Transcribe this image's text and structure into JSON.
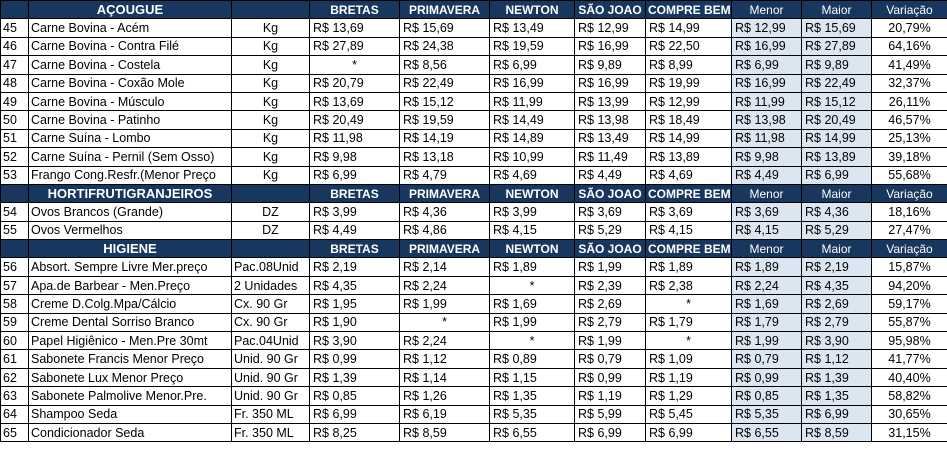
{
  "columns": [
    "BRETAS",
    "PRIMAVERA",
    "NEWTON",
    "SÃO JOAO",
    "COMPRE BEM",
    "Menor",
    "Maior",
    "Variação"
  ],
  "sections": [
    {
      "title": "AÇOUGUE",
      "rows": [
        {
          "n": "45",
          "item": "Carne Bovina - Acém",
          "unit": "Kg",
          "vals": [
            "R$ 13,69",
            "R$ 15,69",
            "R$ 13,49",
            "R$ 12,99",
            "R$ 14,99"
          ],
          "min": "R$ 12,99",
          "max": "R$ 15,69",
          "var": "20,79%"
        },
        {
          "n": "46",
          "item": "Carne Bovina - Contra Filé",
          "unit": "Kg",
          "vals": [
            "R$ 27,89",
            "R$ 24,38",
            "R$ 19,59",
            "R$ 16,99",
            "R$ 22,50"
          ],
          "min": "R$ 16,99",
          "max": "R$ 27,89",
          "var": "64,16%"
        },
        {
          "n": "47",
          "item": "Carne Bovina - Costela",
          "unit": "Kg",
          "vals": [
            "*",
            "R$ 8,56",
            "R$ 6,99",
            "R$ 9,89",
            "R$ 8,99"
          ],
          "min": "R$ 6,99",
          "max": "R$ 9,89",
          "var": "41,49%"
        },
        {
          "n": "48",
          "item": "Carne Bovina - Coxão Mole",
          "unit": "Kg",
          "vals": [
            "R$ 20,79",
            "R$ 22,49",
            "R$ 16,99",
            "R$ 16,99",
            "R$ 19,99"
          ],
          "min": "R$ 16,99",
          "max": "R$ 22,49",
          "var": "32,37%"
        },
        {
          "n": "49",
          "item": "Carne Bovina - Músculo",
          "unit": "Kg",
          "vals": [
            "R$ 13,69",
            "R$ 15,12",
            "R$ 11,99",
            "R$ 13,99",
            "R$ 12,99"
          ],
          "min": "R$ 11,99",
          "max": "R$ 15,12",
          "var": "26,11%"
        },
        {
          "n": "50",
          "item": "Carne Bovina - Patinho",
          "unit": "Kg",
          "vals": [
            "R$ 20,49",
            "R$ 19,59",
            "R$ 14,49",
            "R$ 13,98",
            "R$ 18,49"
          ],
          "min": "R$ 13,98",
          "max": "R$ 20,49",
          "var": "46,57%"
        },
        {
          "n": "51",
          "item": "Carne Suína - Lombo",
          "unit": "Kg",
          "vals": [
            "R$ 11,98",
            "R$ 14,19",
            "R$ 14,89",
            "R$ 13,49",
            "R$ 14,99"
          ],
          "min": "R$ 11,98",
          "max": "R$ 14,99",
          "var": "25,13%"
        },
        {
          "n": "52",
          "item": "Carne Suína - Pernil (Sem Osso)",
          "unit": "Kg",
          "vals": [
            "R$ 9,98",
            "R$ 13,18",
            "R$ 10,99",
            "R$ 11,49",
            "R$ 13,89"
          ],
          "min": "R$ 9,98",
          "max": "R$ 13,89",
          "var": "39,18%"
        },
        {
          "n": "53",
          "item": "Frango Cong.Resfr.(Menor Preço",
          "unit": "Kg",
          "vals": [
            "R$ 6,99",
            "R$ 4,79",
            "R$ 4,69",
            "R$ 4,49",
            "R$ 4,69"
          ],
          "min": "R$ 4,49",
          "max": "R$ 6,99",
          "var": "55,68%"
        }
      ]
    },
    {
      "title": "HORTIFRUTIGRANJEIROS",
      "rows": [
        {
          "n": "54",
          "item": "Ovos Brancos (Grande)",
          "unit": "DZ",
          "vals": [
            "R$ 3,99",
            "R$ 4,36",
            "R$ 3,99",
            "R$ 3,69",
            "R$ 3,69"
          ],
          "min": "R$ 3,69",
          "max": "R$ 4,36",
          "var": "18,16%"
        },
        {
          "n": "55",
          "item": "Ovos Vermelhos",
          "unit": "DZ",
          "vals": [
            "R$ 4,49",
            "R$ 4,86",
            "R$ 4,15",
            "R$ 5,29",
            "R$ 4,15"
          ],
          "min": "R$ 4,15",
          "max": "R$ 5,29",
          "var": "27,47%"
        }
      ]
    },
    {
      "title": "HIGIENE",
      "rows": [
        {
          "n": "56",
          "item": "Absort. Sempre Livre Mer.preço",
          "unit": "Pac.08Unid",
          "vals": [
            "R$ 2,19",
            "R$ 2,14",
            "R$ 1,89",
            "R$ 1,99",
            "R$ 1,89"
          ],
          "min": "R$ 1,89",
          "max": "R$ 2,19",
          "var": "15,87%"
        },
        {
          "n": "57",
          "item": "Apa.de Barbear - Men.Preço",
          "unit": "2 Unidades",
          "vals": [
            "R$ 4,35",
            "R$ 2,24",
            "*",
            "R$ 2,39",
            "R$ 2,38"
          ],
          "min": "R$ 2,24",
          "max": "R$ 4,35",
          "var": "94,20%"
        },
        {
          "n": "58",
          "item": "Creme D.Colg.Mpa/Cálcio",
          "unit": "Cx. 90 Gr",
          "vals": [
            "R$ 1,95",
            "R$ 1,99",
            "R$ 1,69",
            "R$ 2,69",
            "*"
          ],
          "min": "R$ 1,69",
          "max": "R$ 2,69",
          "var": "59,17%"
        },
        {
          "n": "59",
          "item": "Creme Dental Sorriso Branco",
          "unit": "Cx. 90 Gr",
          "vals": [
            "R$ 1,90",
            "*",
            "R$ 1,99",
            "R$ 2,79",
            "R$ 1,79"
          ],
          "min": "R$ 1,79",
          "max": "R$ 2,79",
          "var": "55,87%"
        },
        {
          "n": "60",
          "item": "Papel Higiênico - Men.Pre 30mt",
          "unit": "Pac.04Unid",
          "vals": [
            "R$ 3,90",
            "R$ 2,24",
            "*",
            "R$ 1,99",
            "*"
          ],
          "min": "R$ 1,99",
          "max": "R$ 3,90",
          "var": "95,98%"
        },
        {
          "n": "61",
          "item": "Sabonete Francis Menor Preço",
          "unit": "Unid. 90 Gr",
          "vals": [
            "R$ 0,99",
            "R$ 1,12",
            "R$ 0,89",
            "R$ 0,79",
            "R$ 1,09"
          ],
          "min": "R$ 0,79",
          "max": "R$ 1,12",
          "var": "41,77%"
        },
        {
          "n": "62",
          "item": "Sabonete Lux  Menor Preço",
          "unit": "Unid. 90 Gr",
          "vals": [
            "R$ 1,39",
            "R$ 1,14",
            "R$ 1,15",
            "R$ 0,99",
            "R$ 1,19"
          ],
          "min": "R$ 0,99",
          "max": "R$ 1,39",
          "var": "40,40%"
        },
        {
          "n": "63",
          "item": "Sabonete Palmolive Menor.Pre.",
          "unit": "Unid. 90 Gr",
          "vals": [
            "R$ 0,85",
            "R$ 1,26",
            "R$ 1,35",
            "R$ 1,19",
            "R$ 1,29"
          ],
          "min": "R$ 0,85",
          "max": "R$ 1,35",
          "var": "58,82%"
        },
        {
          "n": "64",
          "item": "Shampoo Seda",
          "unit": "Fr. 350 ML",
          "vals": [
            "R$ 6,99",
            "R$ 6,19",
            "R$ 5,35",
            "R$ 5,99",
            "R$ 5,45"
          ],
          "min": "R$ 5,35",
          "max": "R$ 6,99",
          "var": "30,65%"
        },
        {
          "n": "65",
          "item": "Condicionador Seda",
          "unit": "Fr. 350 ML",
          "vals": [
            "R$ 8,25",
            "R$ 8,59",
            "R$ 6,55",
            "R$ 6,99",
            "R$ 6,99"
          ],
          "min": "R$ 6,55",
          "max": "R$ 8,59",
          "var": "31,15%"
        }
      ]
    }
  ]
}
